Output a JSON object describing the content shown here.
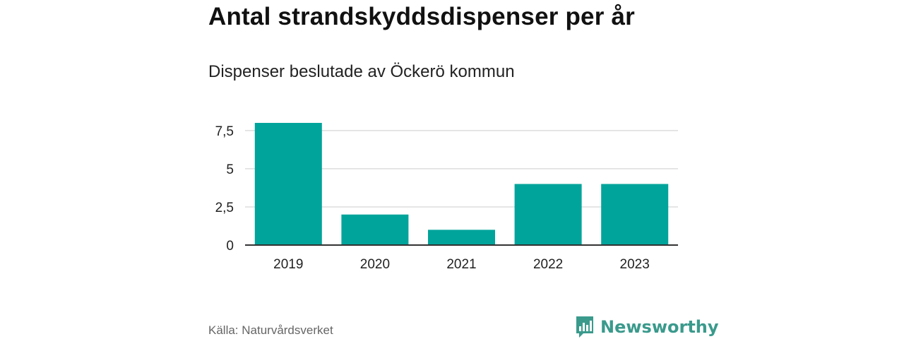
{
  "chart_data": {
    "type": "bar",
    "title": "Antal strandskyddsdispenser per år",
    "subtitle": "Dispenser beslutade av Öckerö kommun",
    "categories": [
      "2019",
      "2020",
      "2021",
      "2022",
      "2023"
    ],
    "values": [
      8,
      2,
      1,
      4,
      4
    ],
    "y_ticks": [
      {
        "value": 0,
        "label": "0"
      },
      {
        "value": 2.5,
        "label": "2,5"
      },
      {
        "value": 5,
        "label": "5"
      },
      {
        "value": 7.5,
        "label": "7,5"
      }
    ],
    "ylim": [
      0,
      8
    ],
    "grid": true,
    "bar_color": "#00a49a",
    "grid_color": "#dddddd",
    "axis_color": "#333333"
  },
  "footer": {
    "source": "Källa: Naturvårdsverket",
    "brand_name": "Newsworthy",
    "brand_icon": "newsworthy-logo-icon",
    "brand_color": "#3a9a8c"
  }
}
